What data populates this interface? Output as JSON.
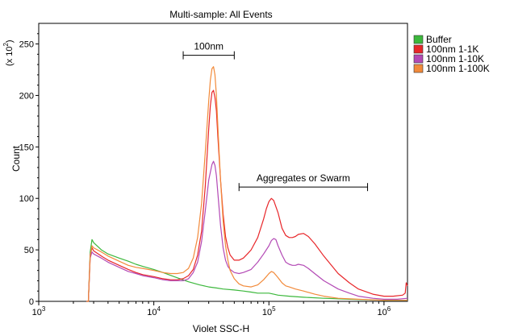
{
  "chart_data": {
    "type": "line",
    "title": "Multi-sample: All Events",
    "xlabel": "Violet SSC-H",
    "ylabel": "Count",
    "y_multiplier_label": "(x 10",
    "y_multiplier_exp": "2",
    "y_multiplier_close": ")",
    "x_scale": "log",
    "xlim": [
      1000,
      1600000
    ],
    "ylim": [
      0,
      270
    ],
    "x_ticks": [
      {
        "value": 1000,
        "base": "10",
        "exp": "3"
      },
      {
        "value": 10000,
        "base": "10",
        "exp": "4"
      },
      {
        "value": 100000,
        "base": "10",
        "exp": "5"
      },
      {
        "value": 1000000,
        "base": "10",
        "exp": "6"
      }
    ],
    "y_ticks": [
      0,
      50,
      100,
      150,
      200,
      250
    ],
    "grid": false,
    "legend_position": "right",
    "annotations": [
      {
        "label": "100nm",
        "x_start": 18000,
        "x_end": 50000,
        "y": 239
      },
      {
        "label": "Aggregates or Swarm",
        "x_start": 55000,
        "x_end": 720000,
        "y": 111
      }
    ],
    "series": [
      {
        "name": "Buffer",
        "color": "#3cb83c",
        "points": [
          [
            2600,
            0
          ],
          [
            2700,
            0
          ],
          [
            2800,
            48
          ],
          [
            2900,
            60
          ],
          [
            3000,
            57
          ],
          [
            3500,
            50
          ],
          [
            4000,
            46
          ],
          [
            5000,
            42
          ],
          [
            6000,
            39
          ],
          [
            7000,
            36
          ],
          [
            8000,
            34
          ],
          [
            10000,
            31
          ],
          [
            12000,
            28
          ],
          [
            15000,
            24
          ],
          [
            20000,
            19
          ],
          [
            25000,
            16
          ],
          [
            30000,
            14
          ],
          [
            35000,
            13
          ],
          [
            40000,
            12
          ],
          [
            50000,
            11
          ],
          [
            60000,
            10
          ],
          [
            70000,
            9
          ],
          [
            80000,
            8
          ],
          [
            90000,
            8
          ],
          [
            100000,
            8
          ],
          [
            110000,
            7
          ],
          [
            120000,
            6
          ],
          [
            150000,
            5
          ],
          [
            200000,
            4
          ],
          [
            300000,
            3
          ],
          [
            500000,
            2
          ],
          [
            1000000,
            1
          ],
          [
            1600000,
            1
          ]
        ]
      },
      {
        "name": "100nm 1-1K",
        "color": "#e8262a",
        "points": [
          [
            2600,
            0
          ],
          [
            2700,
            0
          ],
          [
            2800,
            45
          ],
          [
            2900,
            52
          ],
          [
            3000,
            49
          ],
          [
            3500,
            44
          ],
          [
            4000,
            40
          ],
          [
            5000,
            35
          ],
          [
            6000,
            31
          ],
          [
            7000,
            28
          ],
          [
            8000,
            26
          ],
          [
            10000,
            24
          ],
          [
            12000,
            22
          ],
          [
            14000,
            21
          ],
          [
            16000,
            21
          ],
          [
            18000,
            22
          ],
          [
            20000,
            25
          ],
          [
            22000,
            31
          ],
          [
            24000,
            45
          ],
          [
            26000,
            68
          ],
          [
            28000,
            112
          ],
          [
            30000,
            168
          ],
          [
            31000,
            190
          ],
          [
            32000,
            203
          ],
          [
            33000,
            205
          ],
          [
            34000,
            198
          ],
          [
            35000,
            185
          ],
          [
            36000,
            160
          ],
          [
            38000,
            118
          ],
          [
            40000,
            85
          ],
          [
            42000,
            63
          ],
          [
            44000,
            52
          ],
          [
            46000,
            45
          ],
          [
            50000,
            40
          ],
          [
            55000,
            40
          ],
          [
            60000,
            42
          ],
          [
            65000,
            46
          ],
          [
            70000,
            50
          ],
          [
            80000,
            62
          ],
          [
            90000,
            80
          ],
          [
            95000,
            90
          ],
          [
            100000,
            97
          ],
          [
            105000,
            100
          ],
          [
            110000,
            98
          ],
          [
            120000,
            86
          ],
          [
            130000,
            71
          ],
          [
            140000,
            64
          ],
          [
            150000,
            62
          ],
          [
            160000,
            62
          ],
          [
            170000,
            63
          ],
          [
            180000,
            65
          ],
          [
            200000,
            66
          ],
          [
            220000,
            63
          ],
          [
            250000,
            56
          ],
          [
            300000,
            44
          ],
          [
            400000,
            27
          ],
          [
            500000,
            18
          ],
          [
            600000,
            12
          ],
          [
            800000,
            7
          ],
          [
            1000000,
            5
          ],
          [
            1200000,
            5
          ],
          [
            1450000,
            6
          ],
          [
            1530000,
            8
          ],
          [
            1560000,
            18
          ],
          [
            1600000,
            15
          ]
        ]
      },
      {
        "name": "100nm 1-10K",
        "color": "#b349b5",
        "points": [
          [
            2600,
            0
          ],
          [
            2700,
            0
          ],
          [
            2800,
            42
          ],
          [
            2900,
            48
          ],
          [
            3000,
            46
          ],
          [
            3500,
            42
          ],
          [
            4000,
            38
          ],
          [
            5000,
            33
          ],
          [
            6000,
            29
          ],
          [
            7000,
            27
          ],
          [
            8000,
            25
          ],
          [
            10000,
            23
          ],
          [
            12000,
            21
          ],
          [
            14000,
            20
          ],
          [
            16000,
            20
          ],
          [
            18000,
            20
          ],
          [
            20000,
            22
          ],
          [
            22000,
            28
          ],
          [
            24000,
            38
          ],
          [
            26000,
            58
          ],
          [
            28000,
            88
          ],
          [
            30000,
            118
          ],
          [
            32000,
            133
          ],
          [
            33000,
            136
          ],
          [
            34000,
            132
          ],
          [
            35000,
            122
          ],
          [
            36000,
            105
          ],
          [
            38000,
            74
          ],
          [
            40000,
            52
          ],
          [
            42000,
            40
          ],
          [
            44000,
            34
          ],
          [
            46000,
            31
          ],
          [
            50000,
            28
          ],
          [
            55000,
            27
          ],
          [
            60000,
            28
          ],
          [
            70000,
            31
          ],
          [
            80000,
            38
          ],
          [
            90000,
            46
          ],
          [
            100000,
            54
          ],
          [
            105000,
            59
          ],
          [
            110000,
            61
          ],
          [
            115000,
            60
          ],
          [
            120000,
            54
          ],
          [
            130000,
            45
          ],
          [
            140000,
            38
          ],
          [
            150000,
            36
          ],
          [
            160000,
            35
          ],
          [
            170000,
            35
          ],
          [
            180000,
            36
          ],
          [
            200000,
            35
          ],
          [
            220000,
            32
          ],
          [
            250000,
            27
          ],
          [
            300000,
            20
          ],
          [
            400000,
            12
          ],
          [
            500000,
            8
          ],
          [
            600000,
            5
          ],
          [
            800000,
            3
          ],
          [
            1000000,
            2
          ],
          [
            1300000,
            2
          ],
          [
            1600000,
            3
          ]
        ]
      },
      {
        "name": "100nm 1-100K",
        "color": "#f28a3a",
        "points": [
          [
            2600,
            0
          ],
          [
            2700,
            0
          ],
          [
            2800,
            44
          ],
          [
            2900,
            54
          ],
          [
            3000,
            52
          ],
          [
            3500,
            48
          ],
          [
            4000,
            44
          ],
          [
            5000,
            39
          ],
          [
            6000,
            35
          ],
          [
            7000,
            33
          ],
          [
            8000,
            32
          ],
          [
            10000,
            30
          ],
          [
            12000,
            28
          ],
          [
            14000,
            27
          ],
          [
            16000,
            27
          ],
          [
            18000,
            28
          ],
          [
            20000,
            32
          ],
          [
            22000,
            42
          ],
          [
            24000,
            62
          ],
          [
            26000,
            95
          ],
          [
            28000,
            145
          ],
          [
            30000,
            195
          ],
          [
            31000,
            215
          ],
          [
            32000,
            226
          ],
          [
            33000,
            228
          ],
          [
            34000,
            220
          ],
          [
            35000,
            200
          ],
          [
            36000,
            170
          ],
          [
            38000,
            118
          ],
          [
            40000,
            78
          ],
          [
            42000,
            54
          ],
          [
            44000,
            40
          ],
          [
            46000,
            30
          ],
          [
            50000,
            22
          ],
          [
            55000,
            17
          ],
          [
            60000,
            15
          ],
          [
            70000,
            14
          ],
          [
            80000,
            16
          ],
          [
            90000,
            21
          ],
          [
            100000,
            27
          ],
          [
            105000,
            29
          ],
          [
            110000,
            28
          ],
          [
            120000,
            23
          ],
          [
            130000,
            18
          ],
          [
            140000,
            15
          ],
          [
            150000,
            14
          ],
          [
            170000,
            12
          ],
          [
            200000,
            10
          ],
          [
            250000,
            7
          ],
          [
            300000,
            5
          ],
          [
            400000,
            3
          ],
          [
            600000,
            2
          ],
          [
            1000000,
            1
          ],
          [
            1600000,
            1
          ]
        ]
      }
    ]
  }
}
